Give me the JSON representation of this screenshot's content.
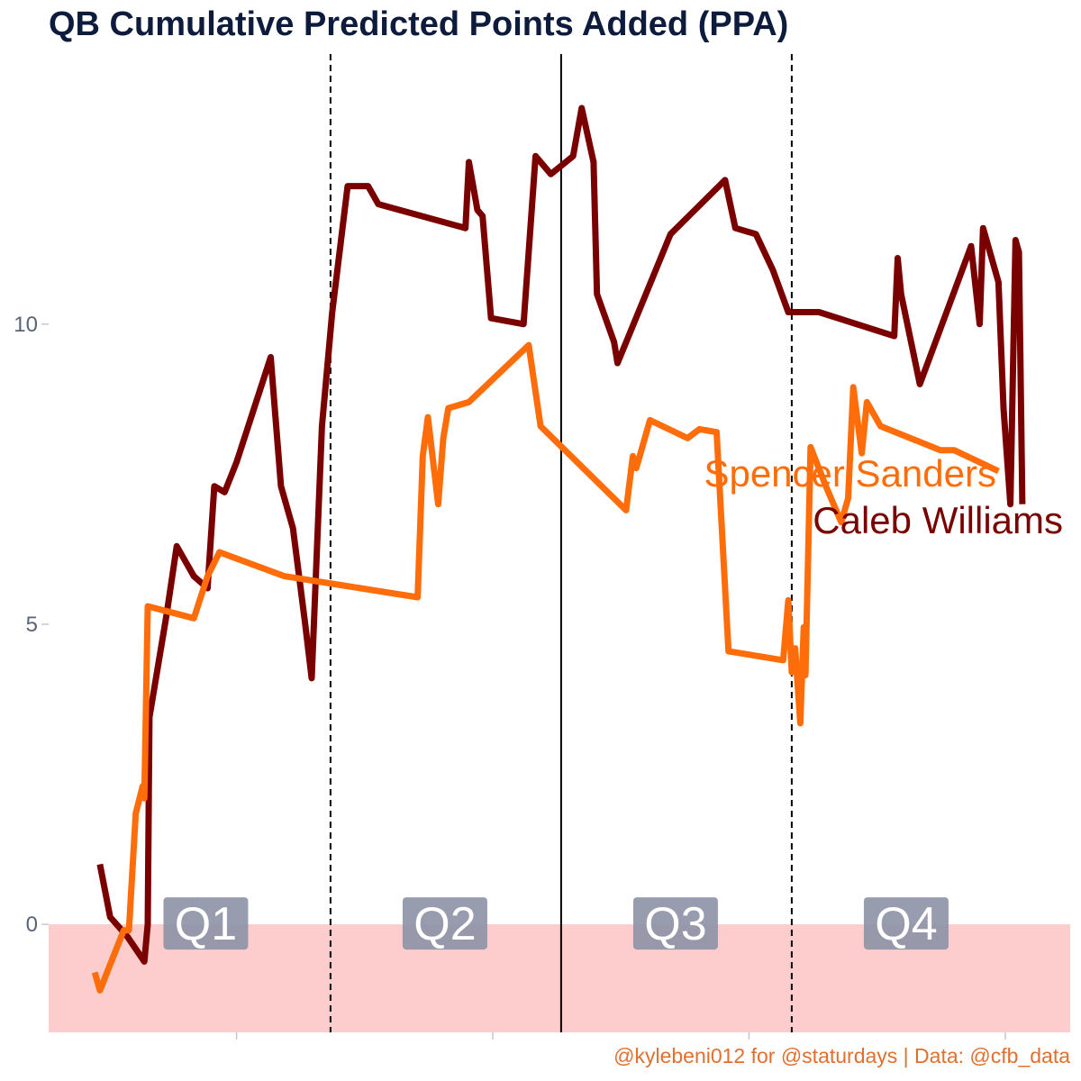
{
  "chart_data": {
    "type": "line",
    "title": "QB Cumulative Predicted Points Added (PPA)",
    "caption": "@kylebeni012 for @staturdays | Data: @cfb_data",
    "xlabel": "",
    "ylabel": "",
    "ylim": [
      -1.8,
      14.5
    ],
    "xlim": [
      -1.0,
      58.8
    ],
    "y_ticks": [
      0,
      5,
      10
    ],
    "y_tick_labels": [
      "0",
      "5",
      "10"
    ],
    "x_ticks": [
      10,
      25,
      40,
      55
    ],
    "grid": false,
    "negative_band": {
      "from": -1.8,
      "to": 0,
      "color": "#fdcccc"
    },
    "quarter_lines": [
      {
        "x": 15.5,
        "style": "dashed"
      },
      {
        "x": 29.0,
        "style": "solid"
      },
      {
        "x": 42.5,
        "style": "dashed"
      }
    ],
    "quarter_labels": [
      {
        "text": "Q1",
        "x": 8.2,
        "y": 0
      },
      {
        "text": "Q2",
        "x": 22.2,
        "y": 0
      },
      {
        "text": "Q3",
        "x": 35.7,
        "y": 0
      },
      {
        "text": "Q4",
        "x": 49.2,
        "y": 0
      }
    ],
    "quarter_label_fill": "#8f94a8",
    "series": [
      {
        "name": "Caleb Williams",
        "color": "#7a0000",
        "label_position": "end",
        "points": [
          [
            2.0,
            1.0
          ],
          [
            2.6,
            0.12
          ],
          [
            3.6,
            -0.2
          ],
          [
            4.6,
            -0.62
          ],
          [
            4.8,
            0.0
          ],
          [
            4.9,
            3.45
          ],
          [
            5.9,
            5.15
          ],
          [
            6.5,
            6.3
          ],
          [
            7.1,
            6.0
          ],
          [
            7.5,
            5.8
          ],
          [
            8.3,
            5.6
          ],
          [
            8.7,
            7.3
          ],
          [
            9.3,
            7.2
          ],
          [
            10.0,
            7.7
          ],
          [
            12.0,
            9.45
          ],
          [
            12.6,
            7.3
          ],
          [
            13.3,
            6.6
          ],
          [
            14.0,
            5.05
          ],
          [
            14.4,
            4.1
          ],
          [
            15.0,
            8.3
          ],
          [
            15.6,
            10.2
          ],
          [
            16.5,
            12.3
          ],
          [
            17.7,
            12.3
          ],
          [
            18.3,
            12.0
          ],
          [
            23.4,
            11.6
          ],
          [
            23.6,
            12.7
          ],
          [
            24.1,
            11.9
          ],
          [
            24.4,
            11.8
          ],
          [
            24.9,
            10.1
          ],
          [
            26.8,
            10.0
          ],
          [
            27.5,
            12.8
          ],
          [
            28.4,
            12.5
          ],
          [
            29.7,
            12.8
          ],
          [
            30.2,
            13.6
          ],
          [
            30.9,
            12.7
          ],
          [
            31.1,
            10.5
          ],
          [
            32.1,
            9.7
          ],
          [
            32.3,
            9.35
          ],
          [
            35.4,
            11.5
          ],
          [
            38.6,
            12.4
          ],
          [
            39.2,
            11.6
          ],
          [
            40.4,
            11.5
          ],
          [
            41.4,
            10.9
          ],
          [
            42.3,
            10.2
          ],
          [
            44.1,
            10.2
          ],
          [
            48.5,
            9.8
          ],
          [
            48.7,
            11.1
          ],
          [
            48.9,
            10.5
          ],
          [
            50.0,
            9.0
          ],
          [
            53.0,
            11.3
          ],
          [
            53.5,
            10.0
          ],
          [
            53.7,
            11.6
          ],
          [
            54.2,
            11.1
          ],
          [
            54.6,
            10.7
          ],
          [
            54.9,
            8.6
          ],
          [
            55.3,
            7.0
          ],
          [
            55.6,
            11.4
          ],
          [
            55.8,
            11.2
          ],
          [
            56.0,
            7.0
          ]
        ]
      },
      {
        "name": "Spencer Sanders",
        "color": "#ff6d0a",
        "label_position": "end",
        "points": [
          [
            1.7,
            -0.8
          ],
          [
            2.0,
            -1.1
          ],
          [
            3.4,
            -0.1
          ],
          [
            3.7,
            -0.1
          ],
          [
            4.1,
            1.85
          ],
          [
            4.5,
            2.3
          ],
          [
            4.6,
            2.1
          ],
          [
            4.8,
            5.3
          ],
          [
            7.5,
            5.1
          ],
          [
            8.3,
            5.8
          ],
          [
            9.0,
            6.2
          ],
          [
            12.8,
            5.8
          ],
          [
            20.6,
            5.45
          ],
          [
            20.9,
            7.8
          ],
          [
            21.2,
            8.45
          ],
          [
            21.8,
            7.0
          ],
          [
            22.1,
            8.1
          ],
          [
            22.4,
            8.6
          ],
          [
            23.6,
            8.7
          ],
          [
            27.1,
            9.65
          ],
          [
            27.8,
            8.3
          ],
          [
            32.8,
            6.9
          ],
          [
            33.2,
            7.8
          ],
          [
            33.4,
            7.6
          ],
          [
            34.2,
            8.4
          ],
          [
            36.4,
            8.1
          ],
          [
            37.1,
            8.25
          ],
          [
            38.1,
            8.2
          ],
          [
            38.8,
            4.55
          ],
          [
            42.0,
            4.4
          ],
          [
            42.3,
            5.4
          ],
          [
            42.5,
            4.2
          ],
          [
            42.7,
            4.6
          ],
          [
            43.0,
            3.35
          ],
          [
            43.2,
            4.95
          ],
          [
            43.3,
            4.15
          ],
          [
            43.6,
            7.95
          ],
          [
            44.5,
            7.3
          ],
          [
            45.4,
            6.7
          ],
          [
            45.8,
            7.1
          ],
          [
            46.1,
            8.95
          ],
          [
            46.6,
            7.85
          ],
          [
            46.9,
            8.7
          ],
          [
            47.7,
            8.3
          ],
          [
            51.2,
            7.9
          ],
          [
            52.0,
            7.9
          ],
          [
            54.6,
            7.55
          ]
        ]
      }
    ]
  }
}
